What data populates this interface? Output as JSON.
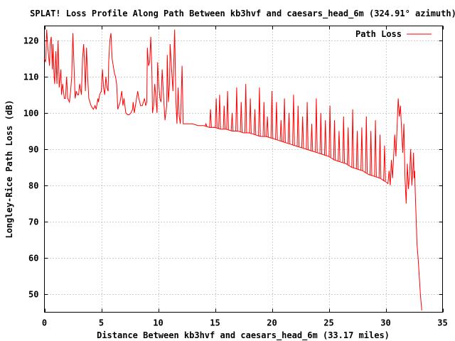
{
  "chart_data": {
    "type": "line",
    "title": "SPLAT! Loss Profile Along Path Between kb3hvf and caesars_head_6m (324.91° azimuth)",
    "xlabel": "Distance Between kb3hvf and caesars_head_6m (33.17 miles)",
    "ylabel": "Longley-Rice Path Loss (dB)",
    "xlim": [
      0,
      35
    ],
    "ylim": [
      45,
      124
    ],
    "xticks": [
      0,
      5,
      10,
      15,
      20,
      25,
      30,
      35
    ],
    "yticks": [
      50,
      60,
      70,
      80,
      90,
      100,
      110,
      120
    ],
    "grid": true,
    "legend_position": "top-right",
    "series": [
      {
        "name": "Path Loss",
        "color": "#ff0000",
        "points": [
          [
            0.0,
            115
          ],
          [
            0.1,
            114
          ],
          [
            0.2,
            123
          ],
          [
            0.3,
            118
          ],
          [
            0.45,
            113
          ],
          [
            0.5,
            119
          ],
          [
            0.6,
            121
          ],
          [
            0.7,
            112
          ],
          [
            0.75,
            119
          ],
          [
            0.85,
            110
          ],
          [
            0.9,
            108
          ],
          [
            1.0,
            117
          ],
          [
            1.1,
            108
          ],
          [
            1.2,
            120
          ],
          [
            1.3,
            107
          ],
          [
            1.45,
            112
          ],
          [
            1.5,
            105
          ],
          [
            1.6,
            108
          ],
          [
            1.75,
            104
          ],
          [
            1.85,
            104
          ],
          [
            1.95,
            110
          ],
          [
            2.05,
            104
          ],
          [
            2.2,
            103
          ],
          [
            2.3,
            106
          ],
          [
            2.4,
            110
          ],
          [
            2.5,
            122
          ],
          [
            2.6,
            113
          ],
          [
            2.7,
            104
          ],
          [
            2.8,
            106
          ],
          [
            2.9,
            105
          ],
          [
            3.0,
            105
          ],
          [
            3.1,
            108
          ],
          [
            3.25,
            105
          ],
          [
            3.35,
            115
          ],
          [
            3.45,
            119
          ],
          [
            3.55,
            112
          ],
          [
            3.6,
            106
          ],
          [
            3.7,
            118
          ],
          [
            3.8,
            110
          ],
          [
            3.9,
            104
          ],
          [
            4.1,
            102
          ],
          [
            4.3,
            101
          ],
          [
            4.45,
            102
          ],
          [
            4.55,
            101
          ],
          [
            4.7,
            104
          ],
          [
            4.75,
            103
          ],
          [
            4.85,
            105
          ],
          [
            5.0,
            106
          ],
          [
            5.1,
            112
          ],
          [
            5.2,
            107
          ],
          [
            5.3,
            105
          ],
          [
            5.4,
            110
          ],
          [
            5.5,
            107
          ],
          [
            5.6,
            106
          ],
          [
            5.65,
            114
          ],
          [
            5.75,
            120
          ],
          [
            5.85,
            122
          ],
          [
            5.95,
            115
          ],
          [
            6.05,
            113
          ],
          [
            6.15,
            111
          ],
          [
            6.25,
            110
          ],
          [
            6.35,
            108
          ],
          [
            6.45,
            101
          ],
          [
            6.55,
            102
          ],
          [
            6.65,
            103
          ],
          [
            6.8,
            106
          ],
          [
            6.9,
            102
          ],
          [
            7.0,
            104
          ],
          [
            7.15,
            100
          ],
          [
            7.3,
            99.5
          ],
          [
            7.45,
            99.5
          ],
          [
            7.6,
            100
          ],
          [
            7.75,
            101
          ],
          [
            7.8,
            103
          ],
          [
            7.9,
            100
          ],
          [
            8.0,
            102
          ],
          [
            8.2,
            106
          ],
          [
            8.3,
            104
          ],
          [
            8.45,
            102
          ],
          [
            8.6,
            102
          ],
          [
            8.7,
            103
          ],
          [
            8.8,
            104
          ],
          [
            8.9,
            102
          ],
          [
            9.0,
            103
          ],
          [
            9.05,
            118
          ],
          [
            9.15,
            113
          ],
          [
            9.25,
            114
          ],
          [
            9.35,
            121
          ],
          [
            9.45,
            111
          ],
          [
            9.5,
            100
          ],
          [
            9.6,
            102
          ],
          [
            9.7,
            108
          ],
          [
            9.8,
            104
          ],
          [
            9.9,
            100
          ],
          [
            9.95,
            114
          ],
          [
            10.05,
            108
          ],
          [
            10.15,
            104
          ],
          [
            10.25,
            103
          ],
          [
            10.35,
            112
          ],
          [
            10.5,
            103
          ],
          [
            10.6,
            98
          ],
          [
            10.75,
            102
          ],
          [
            10.8,
            116
          ],
          [
            10.9,
            103
          ],
          [
            11.0,
            108
          ],
          [
            11.05,
            119
          ],
          [
            11.2,
            111
          ],
          [
            11.3,
            106
          ],
          [
            11.45,
            123
          ],
          [
            11.55,
            104
          ],
          [
            11.65,
            97
          ],
          [
            11.75,
            107
          ],
          [
            11.85,
            99
          ],
          [
            11.95,
            97
          ],
          [
            12.05,
            107
          ],
          [
            12.1,
            113
          ],
          [
            12.2,
            97
          ],
          [
            12.5,
            97
          ],
          [
            13.0,
            97
          ],
          [
            13.5,
            96.5
          ],
          [
            14.0,
            96.5
          ],
          [
            14.5,
            96
          ],
          [
            15.0,
            96
          ],
          [
            15.5,
            95.5
          ],
          [
            16.0,
            95.5
          ],
          [
            16.5,
            95
          ],
          [
            17.0,
            95
          ],
          [
            17.5,
            94.5
          ],
          [
            18.0,
            94.5
          ],
          [
            18.5,
            94
          ],
          [
            19.0,
            93.5
          ],
          [
            19.5,
            93.5
          ],
          [
            20.0,
            93
          ],
          [
            20.5,
            92.5
          ],
          [
            21.0,
            92
          ],
          [
            21.5,
            91.5
          ],
          [
            22.0,
            91
          ],
          [
            22.5,
            90.5
          ],
          [
            23.0,
            90
          ],
          [
            23.5,
            89.5
          ],
          [
            24.0,
            89
          ],
          [
            24.5,
            88.5
          ],
          [
            25.0,
            88
          ],
          [
            25.5,
            87
          ],
          [
            26.0,
            86.5
          ],
          [
            26.5,
            86
          ],
          [
            27.0,
            85
          ],
          [
            27.5,
            84.5
          ],
          [
            28.0,
            84
          ],
          [
            28.5,
            83
          ],
          [
            29.0,
            82.5
          ],
          [
            29.5,
            82
          ],
          [
            30.0,
            81
          ],
          [
            30.2,
            80.5
          ],
          [
            30.3,
            84
          ],
          [
            30.4,
            80
          ],
          [
            30.5,
            87
          ],
          [
            30.6,
            82
          ],
          [
            30.8,
            94
          ],
          [
            30.9,
            88
          ],
          [
            31.1,
            104
          ],
          [
            31.2,
            99
          ],
          [
            31.3,
            102
          ],
          [
            31.4,
            95
          ],
          [
            31.5,
            89
          ],
          [
            31.6,
            97
          ],
          [
            31.7,
            82
          ],
          [
            31.8,
            75
          ],
          [
            31.9,
            86
          ],
          [
            32.0,
            79
          ],
          [
            32.1,
            83
          ],
          [
            32.2,
            90
          ],
          [
            32.3,
            80
          ],
          [
            32.4,
            85
          ],
          [
            32.45,
            89
          ],
          [
            32.5,
            82
          ],
          [
            32.55,
            84
          ],
          [
            32.6,
            78
          ],
          [
            32.7,
            69
          ],
          [
            32.75,
            64
          ],
          [
            32.85,
            60
          ],
          [
            32.95,
            55
          ],
          [
            33.05,
            50
          ],
          [
            33.17,
            45.5
          ]
        ],
        "spikes": [
          [
            14.2,
            97
          ],
          [
            14.6,
            101
          ],
          [
            14.9,
            96
          ],
          [
            15.1,
            104
          ],
          [
            15.4,
            105
          ],
          [
            15.8,
            102
          ],
          [
            16.1,
            106
          ],
          [
            16.5,
            100
          ],
          [
            16.9,
            107
          ],
          [
            17.3,
            103
          ],
          [
            17.7,
            108
          ],
          [
            18.1,
            104
          ],
          [
            18.5,
            101
          ],
          [
            18.9,
            107
          ],
          [
            19.3,
            103
          ],
          [
            19.6,
            99
          ],
          [
            20.0,
            106
          ],
          [
            20.4,
            103
          ],
          [
            20.8,
            98
          ],
          [
            21.1,
            104
          ],
          [
            21.5,
            100
          ],
          [
            21.9,
            105
          ],
          [
            22.3,
            102
          ],
          [
            22.7,
            99
          ],
          [
            23.1,
            103
          ],
          [
            23.5,
            97
          ],
          [
            23.9,
            104
          ],
          [
            24.3,
            100
          ],
          [
            24.7,
            98
          ],
          [
            25.1,
            102
          ],
          [
            25.5,
            98
          ],
          [
            25.9,
            95
          ],
          [
            26.3,
            99
          ],
          [
            26.7,
            96
          ],
          [
            27.1,
            101
          ],
          [
            27.5,
            95
          ],
          [
            27.9,
            96
          ],
          [
            28.3,
            99
          ],
          [
            28.7,
            95
          ],
          [
            29.1,
            98
          ],
          [
            29.5,
            94
          ],
          [
            29.9,
            91
          ]
        ]
      }
    ]
  }
}
